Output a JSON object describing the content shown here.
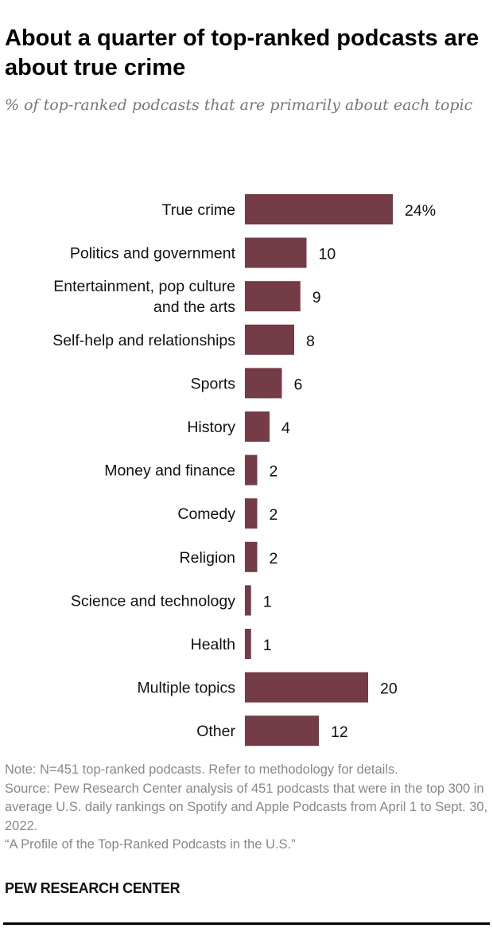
{
  "title": "About a quarter of top-ranked podcasts are about true crime",
  "subtitle": "% of top-ranked podcasts that are primarily about each topic",
  "chart_data": {
    "type": "bar",
    "orientation": "horizontal",
    "categories": [
      [
        "True crime"
      ],
      [
        "Politics and government"
      ],
      [
        "Entertainment, pop culture",
        "and the arts"
      ],
      [
        "Self-help and relationships"
      ],
      [
        "Sports"
      ],
      [
        "History"
      ],
      [
        "Money and finance"
      ],
      [
        "Comedy"
      ],
      [
        "Religion"
      ],
      [
        "Science and technology"
      ],
      [
        "Health"
      ],
      [
        "Multiple topics"
      ],
      [
        "Other"
      ]
    ],
    "values": [
      24,
      10,
      9,
      8,
      6,
      4,
      2,
      2,
      2,
      1,
      1,
      20,
      12
    ],
    "value_labels": [
      "24%",
      "10",
      "9",
      "8",
      "6",
      "4",
      "2",
      "2",
      "2",
      "1",
      "1",
      "20",
      "12"
    ],
    "bar_color": "#733c46",
    "grid": false,
    "xlim": [
      0,
      24
    ]
  },
  "notes": [
    "Note: N=451 top-ranked podcasts. Refer to methodology for details.",
    "Source: Pew Research Center analysis of 451 podcasts that were in the top 300 in average U.S. daily rankings on Spotify and Apple Podcasts from April 1 to Sept. 30, 2022.",
    "“A Profile of the Top-Ranked Podcasts in the U.S.”"
  ],
  "brand": "PEW RESEARCH CENTER"
}
